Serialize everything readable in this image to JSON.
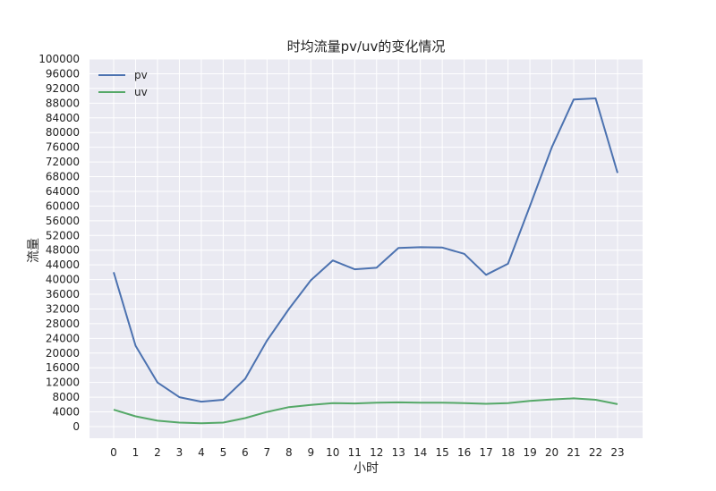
{
  "chart_data": {
    "type": "line",
    "title": "时均流量pv/uv的变化情况",
    "xlabel": "小时",
    "ylabel": "流量",
    "x": [
      0,
      1,
      2,
      3,
      4,
      5,
      6,
      7,
      8,
      9,
      10,
      11,
      12,
      13,
      14,
      15,
      16,
      17,
      18,
      19,
      20,
      21,
      22,
      23
    ],
    "xticks": [
      "0",
      "1",
      "2",
      "3",
      "4",
      "5",
      "6",
      "7",
      "8",
      "9",
      "10",
      "11",
      "12",
      "13",
      "14",
      "15",
      "16",
      "17",
      "18",
      "19",
      "20",
      "21",
      "22",
      "23"
    ],
    "ylim": [
      -1500,
      100000
    ],
    "yticks": [
      0,
      4000,
      8000,
      12000,
      16000,
      20000,
      24000,
      28000,
      32000,
      36000,
      40000,
      44000,
      48000,
      52000,
      56000,
      60000,
      64000,
      68000,
      72000,
      76000,
      80000,
      84000,
      88000,
      92000,
      96000,
      100000
    ],
    "ytick_labels": [
      "0",
      "4000",
      "8000",
      "12000",
      "16000",
      "20000",
      "24000",
      "28000",
      "32000",
      "36000",
      "40000",
      "44000",
      "48000",
      "52000",
      "56000",
      "60000",
      "64000",
      "68000",
      "72000",
      "76000",
      "80000",
      "84000",
      "88000",
      "92000",
      "96000",
      "100000"
    ],
    "grid": true,
    "legend_position": "top-left",
    "series": [
      {
        "name": "pv",
        "color": "#4c72b0",
        "values": [
          42000,
          22000,
          12000,
          8000,
          6800,
          7300,
          13000,
          23400,
          32000,
          39800,
          45200,
          42800,
          43200,
          48600,
          48800,
          48700,
          47000,
          41300,
          44300,
          60000,
          76000,
          89000,
          89300,
          69000
        ]
      },
      {
        "name": "uv",
        "color": "#55a868",
        "values": [
          4600,
          2800,
          1600,
          1100,
          900,
          1100,
          2300,
          4000,
          5300,
          5900,
          6400,
          6300,
          6500,
          6600,
          6500,
          6500,
          6400,
          6200,
          6400,
          7000,
          7400,
          7700,
          7300,
          6100
        ]
      }
    ]
  }
}
